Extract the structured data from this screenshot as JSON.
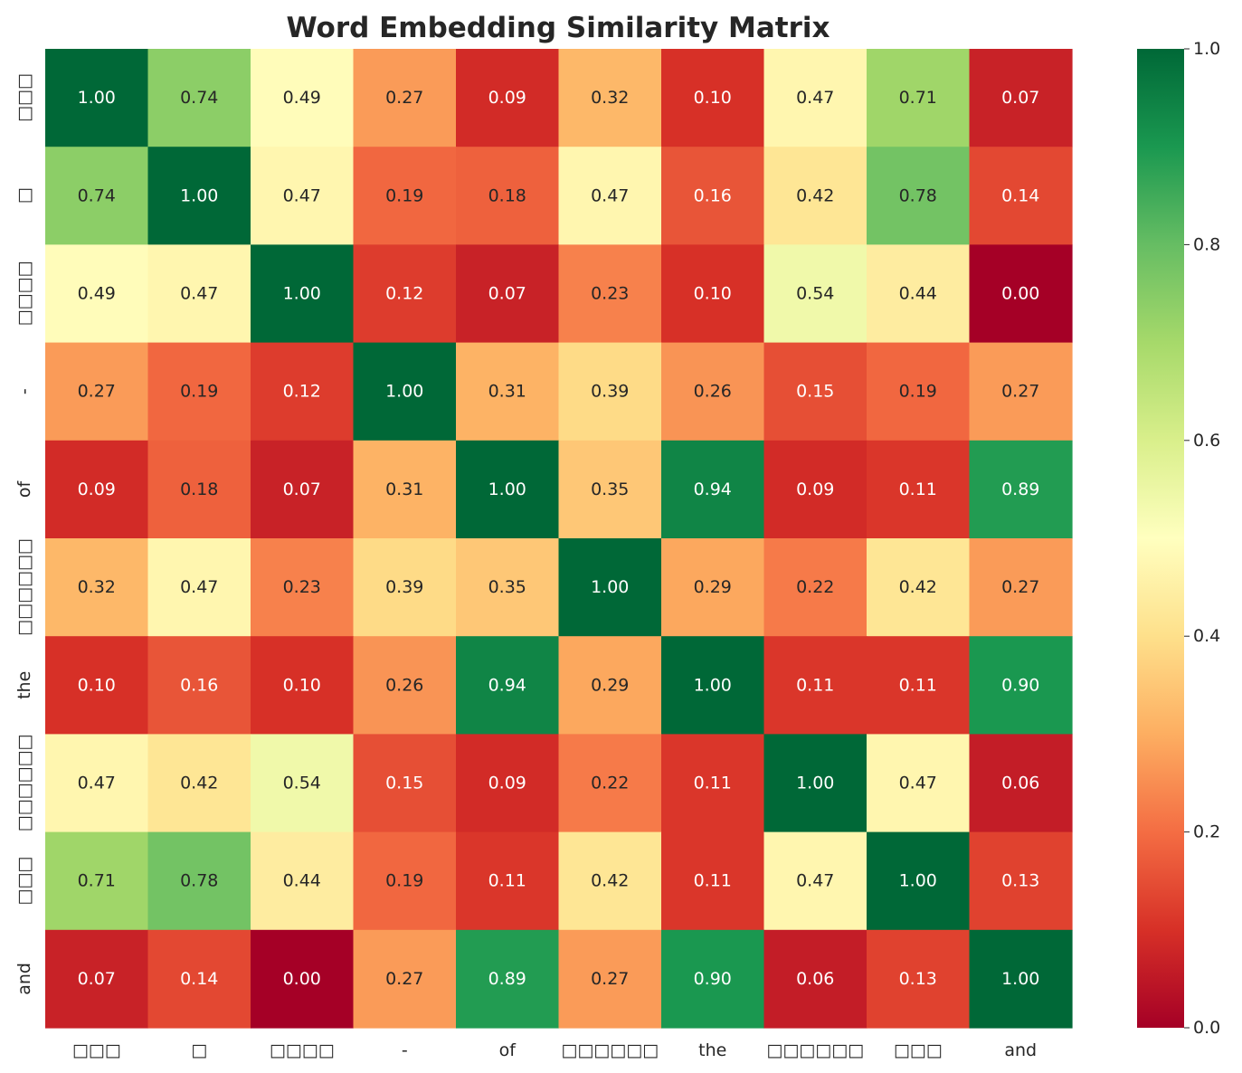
{
  "chart_data": {
    "type": "heatmap",
    "title": "Word Embedding Similarity Matrix",
    "xlabel": "",
    "ylabel": "",
    "row_labels": [
      "□□□",
      "□",
      "□□□□",
      "-",
      "of",
      "□□□□□□",
      "the",
      "□□□□□□",
      "□□□",
      "and"
    ],
    "col_labels": [
      "□□□",
      "□",
      "□□□□",
      "-",
      "of",
      "□□□□□□",
      "the",
      "□□□□□□",
      "□□□",
      "and"
    ],
    "values": [
      [
        1.0,
        0.74,
        0.49,
        0.27,
        0.09,
        0.32,
        0.1,
        0.47,
        0.71,
        0.07
      ],
      [
        0.74,
        1.0,
        0.47,
        0.19,
        0.18,
        0.47,
        0.16,
        0.42,
        0.78,
        0.14
      ],
      [
        0.49,
        0.47,
        1.0,
        0.12,
        0.07,
        0.23,
        0.1,
        0.54,
        0.44,
        -0.0
      ],
      [
        0.27,
        0.19,
        0.12,
        1.0,
        0.31,
        0.39,
        0.26,
        0.15,
        0.19,
        0.27
      ],
      [
        0.09,
        0.18,
        0.07,
        0.31,
        1.0,
        0.35,
        0.94,
        0.09,
        0.11,
        0.89
      ],
      [
        0.32,
        0.47,
        0.23,
        0.39,
        0.35,
        1.0,
        0.29,
        0.22,
        0.42,
        0.27
      ],
      [
        0.1,
        0.16,
        0.1,
        0.26,
        0.94,
        0.29,
        1.0,
        0.11,
        0.11,
        0.9
      ],
      [
        0.47,
        0.42,
        0.54,
        0.15,
        0.09,
        0.22,
        0.11,
        1.0,
        0.47,
        0.06
      ],
      [
        0.71,
        0.78,
        0.44,
        0.19,
        0.11,
        0.42,
        0.11,
        0.47,
        1.0,
        0.13
      ],
      [
        0.07,
        0.14,
        -0.0,
        0.27,
        0.89,
        0.27,
        0.9,
        0.06,
        0.13,
        1.0
      ]
    ],
    "value_format": "2 decimals",
    "colorscale": "RdYlGn",
    "colorbar": {
      "range": [
        0.0,
        1.0
      ],
      "ticks": [
        0.0,
        0.2,
        0.4,
        0.6,
        0.8,
        1.0
      ],
      "tick_labels": [
        "0.0",
        "0.2",
        "0.4",
        "0.6",
        "0.8",
        "1.0"
      ],
      "placement": "right"
    },
    "grid": false
  }
}
